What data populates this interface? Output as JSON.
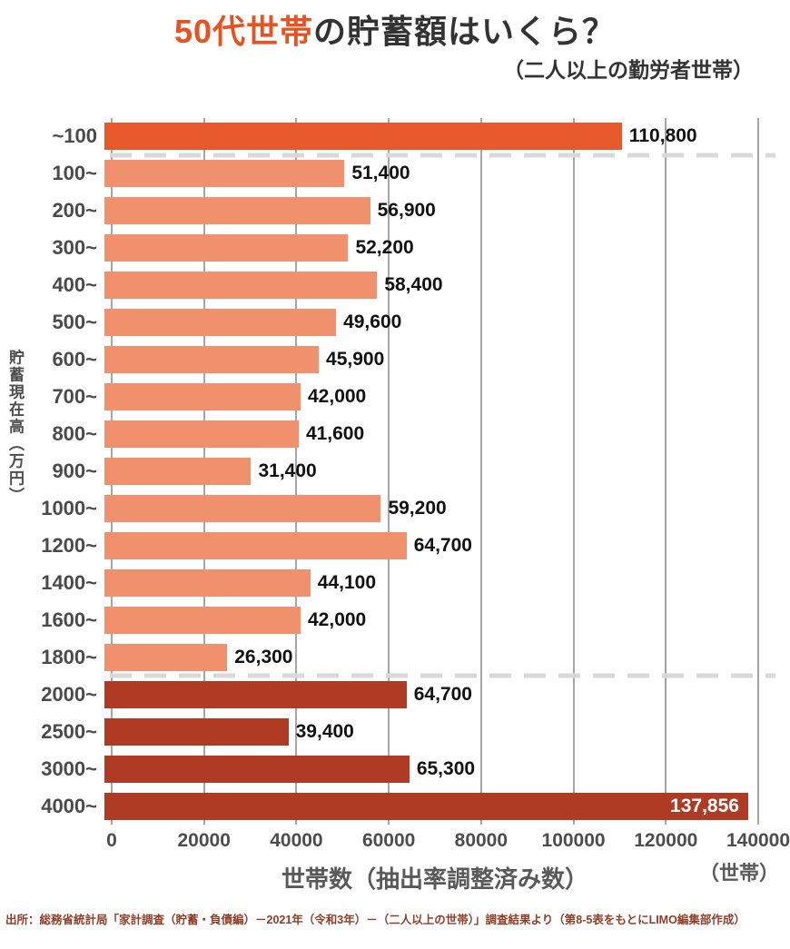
{
  "title": {
    "highlight": "50代世帯",
    "rest": "の貯蓄額はいくら？"
  },
  "subtitle": "（二人以上の勤労者世帯）",
  "footnote": "出所：総務省統計局「家計調査（貯蓄・負債編）－2021年（令和3年）－（二人以上の世帯）」調査結果より（第8-5表をもとにLIMO編集部作成）",
  "chart_data": {
    "type": "bar",
    "orientation": "horizontal",
    "title": "50代世帯の貯蓄額はいくら？",
    "ylabel": "貯蓄現在高（万円）",
    "xlabel": "世帯数（抽出率調整済み数）",
    "x_unit": "（世帯）",
    "xlim": [
      0,
      140000
    ],
    "xticks": [
      0,
      20000,
      40000,
      60000,
      80000,
      100000,
      120000,
      140000
    ],
    "xtick_labels": [
      "0",
      "20000",
      "40000",
      "60000",
      "80000",
      "100000",
      "120000",
      "140000"
    ],
    "grid": true,
    "categories": [
      "~100",
      "100~",
      "200~",
      "300~",
      "400~",
      "500~",
      "600~",
      "700~",
      "800~",
      "900~",
      "1000~",
      "1200~",
      "1400~",
      "1600~",
      "1800~",
      "2000~",
      "2500~",
      "3000~",
      "4000~"
    ],
    "values": [
      110800,
      51400,
      56900,
      52200,
      58400,
      49600,
      45900,
      42000,
      41600,
      31400,
      59200,
      64700,
      44100,
      42000,
      26300,
      64700,
      39400,
      65300,
      137856
    ],
    "value_labels": [
      "110,800",
      "51,400",
      "56,900",
      "52,200",
      "58,400",
      "49,600",
      "45,900",
      "42,000",
      "41,600",
      "31,400",
      "59,200",
      "64,700",
      "44,100",
      "42,000",
      "26,300",
      "64,700",
      "39,400",
      "65,300",
      "137,856"
    ],
    "groups": [
      "accent",
      "light",
      "light",
      "light",
      "light",
      "light",
      "light",
      "light",
      "light",
      "light",
      "light",
      "light",
      "light",
      "light",
      "light",
      "dark",
      "dark",
      "dark",
      "dark"
    ],
    "label_inside": [
      false,
      false,
      false,
      false,
      false,
      false,
      false,
      false,
      false,
      false,
      false,
      false,
      false,
      false,
      false,
      false,
      false,
      false,
      true
    ],
    "separators_after": [
      0,
      14
    ],
    "colors": {
      "accent": "#E7582B",
      "light": "#F0906C",
      "dark": "#B03B25",
      "title_highlight": "#E8521E",
      "grid": "#A6A6A6",
      "separator": "#D9D9D9",
      "axis_text": "#4D4D4D",
      "footnote": "#8F3E28"
    }
  }
}
